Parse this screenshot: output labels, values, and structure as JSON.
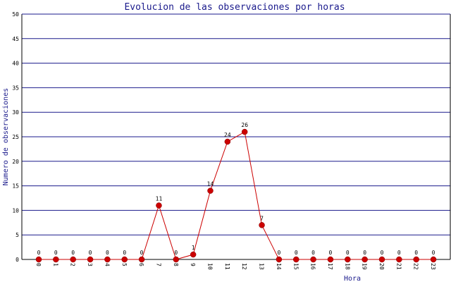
{
  "chart_data": {
    "type": "line",
    "title": "Evolucion de las observaciones por horas",
    "xlabel": "Hora",
    "ylabel": "Numero de observaciones",
    "categories": [
      "0",
      "1",
      "2",
      "3",
      "4",
      "5",
      "6",
      "7",
      "8",
      "9",
      "10",
      "11",
      "12",
      "13",
      "14",
      "15",
      "16",
      "17",
      "18",
      "19",
      "20",
      "21",
      "22",
      "23"
    ],
    "values": [
      0,
      0,
      0,
      0,
      0,
      0,
      0,
      11,
      0,
      1,
      14,
      24,
      26,
      7,
      0,
      0,
      0,
      0,
      0,
      0,
      0,
      0,
      0,
      0
    ],
    "ylim": [
      0,
      50
    ],
    "yticks": [
      0,
      5,
      10,
      15,
      20,
      25,
      30,
      35,
      40,
      45,
      50
    ],
    "grid": "horizontal",
    "colors": {
      "line": "#cc0000",
      "marker": "#cc0000",
      "grid": "#1a1a8c",
      "axis": "#000000",
      "title": "#1a1a8c"
    }
  }
}
